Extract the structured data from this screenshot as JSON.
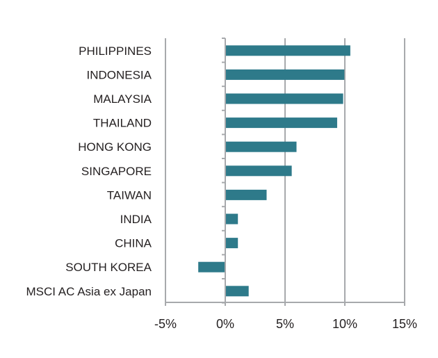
{
  "chart_data": {
    "type": "bar",
    "orientation": "horizontal",
    "categories": [
      "PHILIPPINES",
      "INDONESIA",
      "MALAYSIA",
      "THAILAND",
      "HONG KONG",
      "SINGAPORE",
      "TAIWAN",
      "INDIA",
      "CHINA",
      "SOUTH KOREA",
      "MSCI AC Asia ex Japan"
    ],
    "values": [
      10.4,
      9.9,
      9.8,
      9.3,
      5.9,
      5.5,
      3.4,
      1.0,
      1.0,
      -2.2,
      1.9
    ],
    "xlim": [
      -5,
      15
    ],
    "xticks": [
      "-5%",
      "0%",
      "5%",
      "10%",
      "15%"
    ],
    "xtick_values": [
      -5,
      0,
      5,
      10,
      15
    ],
    "grid": "vertical",
    "legend": "none",
    "bar_color": "#2e7a8a",
    "grid_color": "#a7a9ac"
  }
}
